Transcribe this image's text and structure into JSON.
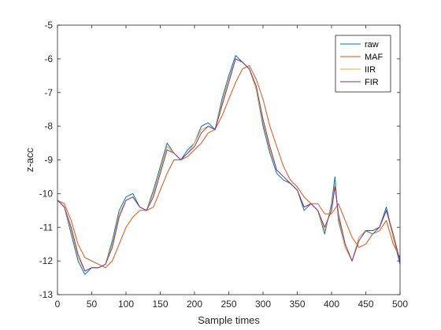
{
  "chart_data": {
    "type": "line",
    "title": "",
    "xlabel": "Sample times",
    "ylabel": "z-acc",
    "xlim": [
      0,
      500
    ],
    "ylim": [
      -13,
      -5
    ],
    "xticks": [
      0,
      50,
      100,
      150,
      200,
      250,
      300,
      350,
      400,
      450,
      500
    ],
    "yticks": [
      -13,
      -12,
      -11,
      -10,
      -9,
      -8,
      -7,
      -6,
      -5
    ],
    "xtick_labels": [
      "0",
      "50",
      "100",
      "150",
      "200",
      "250",
      "300",
      "350",
      "400",
      "450",
      "500"
    ],
    "ytick_labels": [
      "-13",
      "-12",
      "-11",
      "-10",
      "-9",
      "-8",
      "-7",
      "-6",
      "-5"
    ],
    "grid": false,
    "legend_position": "top-right",
    "series": [
      {
        "name": "raw",
        "color": "#0072BD",
        "x": [
          0,
          10,
          20,
          30,
          40,
          50,
          60,
          70,
          80,
          90,
          100,
          110,
          120,
          130,
          140,
          150,
          160,
          170,
          180,
          190,
          200,
          210,
          220,
          230,
          240,
          250,
          260,
          270,
          280,
          290,
          300,
          310,
          320,
          330,
          340,
          350,
          360,
          370,
          380,
          390,
          400,
          405,
          410,
          420,
          430,
          440,
          450,
          460,
          470,
          480,
          490,
          500
        ],
        "y": [
          -10.2,
          -10.4,
          -11.2,
          -12.0,
          -12.4,
          -12.2,
          -12.2,
          -12.1,
          -11.4,
          -10.5,
          -10.1,
          -10.0,
          -10.4,
          -10.5,
          -9.9,
          -9.2,
          -8.5,
          -8.8,
          -9.0,
          -8.7,
          -8.5,
          -8.0,
          -7.9,
          -8.1,
          -7.2,
          -6.5,
          -5.9,
          -6.1,
          -6.3,
          -6.9,
          -8.0,
          -8.8,
          -9.4,
          -9.6,
          -9.7,
          -9.9,
          -10.5,
          -10.3,
          -10.5,
          -11.2,
          -10.3,
          -9.5,
          -10.8,
          -11.6,
          -12.0,
          -11.3,
          -11.1,
          -11.2,
          -11.0,
          -10.4,
          -11.3,
          -12.1
        ]
      },
      {
        "name": "MAF",
        "color": "#D95319",
        "x": [
          0,
          10,
          20,
          30,
          40,
          50,
          60,
          70,
          80,
          90,
          100,
          110,
          120,
          130,
          140,
          150,
          160,
          170,
          180,
          190,
          200,
          210,
          220,
          230,
          240,
          250,
          260,
          270,
          280,
          290,
          300,
          310,
          320,
          330,
          340,
          350,
          360,
          370,
          380,
          390,
          400,
          410,
          420,
          430,
          440,
          450,
          460,
          470,
          480,
          490,
          500
        ],
        "y": [
          -10.2,
          -10.3,
          -10.8,
          -11.5,
          -11.9,
          -12.0,
          -12.1,
          -12.2,
          -12.0,
          -11.5,
          -11.0,
          -10.7,
          -10.5,
          -10.5,
          -10.4,
          -9.9,
          -9.4,
          -9.0,
          -9.0,
          -8.9,
          -8.7,
          -8.5,
          -8.2,
          -8.1,
          -7.7,
          -7.2,
          -6.7,
          -6.3,
          -6.2,
          -6.6,
          -7.2,
          -8.0,
          -8.6,
          -9.2,
          -9.6,
          -9.8,
          -10.1,
          -10.3,
          -10.3,
          -10.6,
          -10.6,
          -10.3,
          -10.8,
          -11.3,
          -11.6,
          -11.5,
          -11.2,
          -11.1,
          -10.8,
          -11.5,
          -11.9
        ]
      },
      {
        "name": "IIR",
        "color": "#EDB120",
        "x": [
          0,
          10,
          20,
          30,
          40,
          50,
          60,
          70,
          80,
          90,
          100,
          110,
          120,
          130,
          140,
          150,
          160,
          170,
          180,
          190,
          200,
          210,
          220,
          230,
          240,
          250,
          260,
          270,
          280,
          290,
          300,
          310,
          320,
          330,
          340,
          350,
          360,
          370,
          380,
          390,
          400,
          405,
          410,
          420,
          430,
          440,
          450,
          460,
          470,
          480,
          490,
          500
        ],
        "y": [
          -10.2,
          -10.4,
          -11.1,
          -11.9,
          -12.3,
          -12.2,
          -12.2,
          -12.1,
          -11.5,
          -10.6,
          -10.2,
          -10.1,
          -10.4,
          -10.5,
          -10.0,
          -9.3,
          -8.6,
          -8.8,
          -9.0,
          -8.8,
          -8.5,
          -8.1,
          -8.0,
          -8.1,
          -7.3,
          -6.6,
          -6.0,
          -6.1,
          -6.3,
          -6.9,
          -7.9,
          -8.7,
          -9.3,
          -9.5,
          -9.7,
          -9.9,
          -10.4,
          -10.3,
          -10.5,
          -11.1,
          -10.4,
          -9.7,
          -10.7,
          -11.6,
          -12.0,
          -11.3,
          -11.1,
          -11.1,
          -11.0,
          -10.5,
          -11.3,
          -12.0
        ]
      },
      {
        "name": "FIR",
        "color": "#7E2F8E",
        "x": [
          0,
          10,
          20,
          30,
          40,
          50,
          60,
          70,
          80,
          90,
          100,
          110,
          120,
          130,
          140,
          150,
          160,
          170,
          180,
          190,
          200,
          210,
          220,
          230,
          240,
          250,
          260,
          270,
          280,
          290,
          300,
          310,
          320,
          330,
          340,
          350,
          360,
          370,
          380,
          390,
          400,
          405,
          410,
          420,
          430,
          440,
          450,
          460,
          470,
          480,
          490,
          500
        ],
        "y": [
          -10.2,
          -10.4,
          -11.0,
          -11.8,
          -12.3,
          -12.2,
          -12.2,
          -12.1,
          -11.6,
          -10.7,
          -10.2,
          -10.1,
          -10.4,
          -10.5,
          -10.1,
          -9.4,
          -8.7,
          -8.8,
          -9.0,
          -8.8,
          -8.6,
          -8.2,
          -8.0,
          -8.1,
          -7.4,
          -6.7,
          -6.0,
          -6.1,
          -6.3,
          -6.8,
          -7.8,
          -8.6,
          -9.3,
          -9.5,
          -9.7,
          -9.9,
          -10.4,
          -10.3,
          -10.5,
          -11.0,
          -10.5,
          -9.8,
          -10.6,
          -11.5,
          -12.0,
          -11.4,
          -11.1,
          -11.1,
          -11.0,
          -10.5,
          -11.2,
          -12.0
        ]
      }
    ]
  }
}
